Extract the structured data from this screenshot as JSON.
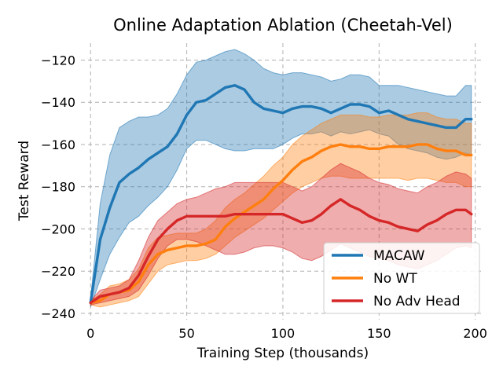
{
  "chart_data": {
    "type": "line",
    "title": "Online Adaptation Ablation (Cheetah-Vel)",
    "xlabel": "Training Step (thousands)",
    "ylabel": "Test Reward",
    "xlim": [
      -5,
      203
    ],
    "ylim": [
      -243,
      -112
    ],
    "xticks": [
      0,
      50,
      100,
      150,
      200
    ],
    "yticks": [
      -240,
      -220,
      -200,
      -180,
      -160,
      -140,
      -120
    ],
    "xtick_labels": [
      "0",
      "50",
      "100",
      "150",
      "200"
    ],
    "ytick_labels": [
      "−240",
      "−220",
      "−200",
      "−180",
      "−160",
      "−140",
      "−120"
    ],
    "grid": true,
    "legend_position": "lower-right",
    "x": [
      0,
      5,
      10,
      15,
      20,
      25,
      30,
      35,
      40,
      45,
      50,
      55,
      60,
      65,
      70,
      75,
      80,
      85,
      90,
      95,
      100,
      105,
      110,
      115,
      120,
      125,
      130,
      135,
      140,
      145,
      150,
      155,
      160,
      165,
      170,
      175,
      180,
      185,
      190,
      195,
      198
    ],
    "series": [
      {
        "name": "MACAW",
        "color": "#1f77b4",
        "values": [
          -235,
          -205,
          -190,
          -178,
          -174,
          -171,
          -167,
          -164,
          -161,
          -155,
          -146,
          -140,
          -139,
          -136,
          -133,
          -132,
          -134,
          -140,
          -143,
          -144,
          -145,
          -143,
          -142,
          -142,
          -143,
          -145,
          -143,
          -141,
          -141,
          -142,
          -145,
          -144,
          -146,
          -148,
          -149,
          -150,
          -151,
          -152,
          -152,
          -148,
          -148
        ],
        "lower": [
          -237,
          -224,
          -212,
          -204,
          -197,
          -194,
          -189,
          -185,
          -180,
          -172,
          -162,
          -158,
          -158,
          -160,
          -162,
          -163,
          -163,
          -162,
          -162,
          -162,
          -160,
          -157,
          -155,
          -155,
          -154,
          -156,
          -154,
          -155,
          -154,
          -153,
          -155,
          -156,
          -160,
          -162,
          -163,
          -164,
          -166,
          -167,
          -166,
          -164,
          -165
        ],
        "upper": [
          -233,
          -188,
          -165,
          -152,
          -149,
          -147,
          -147,
          -146,
          -143,
          -136,
          -127,
          -121,
          -120,
          -118,
          -116,
          -115,
          -117,
          -120,
          -124,
          -126,
          -127,
          -126,
          -126,
          -127,
          -128,
          -130,
          -129,
          -127,
          -127,
          -128,
          -132,
          -132,
          -132,
          -133,
          -134,
          -135,
          -136,
          -137,
          -137,
          -132,
          -132
        ]
      },
      {
        "name": "No WT",
        "color": "#ff7f0e",
        "values": [
          -235,
          -234,
          -231,
          -230,
          -229,
          -225,
          -217,
          -212,
          -210,
          -209,
          -208,
          -208,
          -207,
          -205,
          -199,
          -195,
          -192,
          -189,
          -186,
          -181,
          -177,
          -172,
          -168,
          -166,
          -163,
          -161,
          -160,
          -161,
          -161,
          -162,
          -162,
          -161,
          -161,
          -161,
          -160,
          -160,
          -162,
          -163,
          -163,
          -165,
          -165
        ],
        "lower": [
          -236,
          -237,
          -236,
          -235,
          -234,
          -232,
          -226,
          -220,
          -217,
          -216,
          -215,
          -215,
          -214,
          -212,
          -208,
          -204,
          -201,
          -198,
          -195,
          -191,
          -187,
          -183,
          -180,
          -178,
          -176,
          -175,
          -175,
          -176,
          -176,
          -176,
          -176,
          -176,
          -176,
          -177,
          -176,
          -176,
          -177,
          -178,
          -178,
          -180,
          -180
        ],
        "upper": [
          -234,
          -231,
          -227,
          -226,
          -224,
          -219,
          -209,
          -204,
          -203,
          -202,
          -202,
          -202,
          -200,
          -196,
          -190,
          -186,
          -183,
          -179,
          -175,
          -170,
          -166,
          -160,
          -156,
          -153,
          -150,
          -148,
          -146,
          -146,
          -146,
          -147,
          -147,
          -146,
          -146,
          -146,
          -145,
          -145,
          -147,
          -148,
          -148,
          -150,
          -150
        ]
      },
      {
        "name": "No Adv Head",
        "color": "#d62728",
        "values": [
          -235,
          -232,
          -231,
          -230,
          -228,
          -222,
          -213,
          -205,
          -200,
          -196,
          -194,
          -194,
          -194,
          -194,
          -194,
          -193,
          -193,
          -193,
          -193,
          -193,
          -193,
          -195,
          -197,
          -196,
          -193,
          -189,
          -186,
          -189,
          -191,
          -194,
          -196,
          -197,
          -199,
          -200,
          -201,
          -198,
          -196,
          -193,
          -191,
          -191,
          -193
        ],
        "lower": [
          -236,
          -235,
          -234,
          -233,
          -232,
          -229,
          -222,
          -214,
          -208,
          -205,
          -205,
          -206,
          -208,
          -210,
          -212,
          -212,
          -211,
          -209,
          -208,
          -208,
          -209,
          -211,
          -214,
          -215,
          -213,
          -210,
          -207,
          -209,
          -211,
          -213,
          -214,
          -215,
          -217,
          -218,
          -219,
          -217,
          -215,
          -212,
          -209,
          -208,
          -209
        ],
        "upper": [
          -234,
          -229,
          -228,
          -227,
          -224,
          -215,
          -204,
          -196,
          -192,
          -188,
          -186,
          -185,
          -183,
          -181,
          -180,
          -178,
          -178,
          -178,
          -178,
          -178,
          -178,
          -180,
          -182,
          -180,
          -176,
          -172,
          -169,
          -171,
          -173,
          -176,
          -178,
          -179,
          -181,
          -182,
          -183,
          -180,
          -178,
          -175,
          -173,
          -174,
          -176
        ]
      }
    ]
  }
}
